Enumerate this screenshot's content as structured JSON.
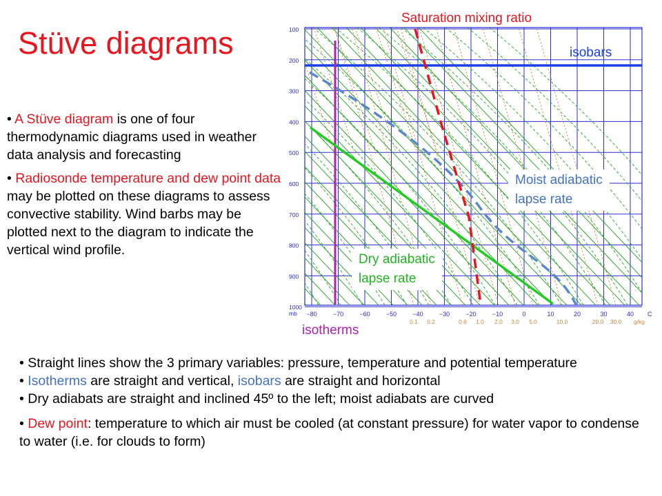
{
  "title": "Stüve diagrams",
  "left_bullets": {
    "b1": {
      "bullet": "• ",
      "highlight": "A Stüve diagram",
      "rest": " is one of four thermodynamic diagrams used in weather data analysis and forecasting"
    },
    "b2": {
      "bullet": "• ",
      "highlight": "Radiosonde temperature and dew point data",
      "rest": " may be plotted on these diagrams to assess convective stability. Wind barbs may be plotted next to the diagram to indicate the vertical wind profile."
    }
  },
  "bottom_bullets": {
    "b1": {
      "text": "• Straight lines show the 3 primary variables: pressure, temperature and potential temperature"
    },
    "b2": {
      "bullet": "• ",
      "h1": "Isotherms",
      "mid": " are straight and vertical, ",
      "h2": "isobars",
      "rest": " are straight and horizontal"
    },
    "b3": {
      "text": "• Dry adiabats are straight and inclined 45º to the left; moist adiabats are curved"
    },
    "b4": {
      "bullet": "• ",
      "highlight": "Dew point",
      "rest": ": temperature to which air must be cooled (at constant pressure) for water vapor to condense to water (i.e. for clouds to form)"
    }
  },
  "labels": {
    "saturation": "Saturation mixing ratio",
    "isobars": "isobars",
    "moist_line1": "Moist adiabatic",
    "moist_line2": "lapse rate",
    "dry_line1": "Dry adiabatic",
    "dry_line2": "lapse rate",
    "isotherms": "isotherms"
  },
  "diagram": {
    "pressure_ticks": [
      "100",
      "200",
      "300",
      "400",
      "500",
      "600",
      "700",
      "800",
      "900",
      "1000"
    ],
    "pressure_unit": "mb",
    "temperature_ticks": [
      "−80",
      "−70",
      "−60",
      "−50",
      "−40",
      "−30",
      "−20",
      "−10",
      "0",
      "10",
      "20",
      "30",
      "40"
    ],
    "temperature_unit": "C",
    "mixing_ratio_ticks": [
      "0.1",
      "0.2",
      "0.6",
      "1.0",
      "2.0",
      "3.0",
      "5.0",
      "10.0",
      "20.0",
      "30.0"
    ],
    "mixing_ratio_unit": "g/kg",
    "colors": {
      "grid": "#2a2ad8",
      "dry_adiabat": "#1aa01a",
      "moist_adiabat": "#22aa22",
      "mixing_ratio": "#c8853c",
      "highlight_isobar": "#1a3ee8",
      "highlight_isotherm": "#b020b0",
      "highlight_dry": "#22cc22",
      "highlight_moist": "#5b86c8",
      "highlight_saturation": "#e8141e"
    }
  }
}
